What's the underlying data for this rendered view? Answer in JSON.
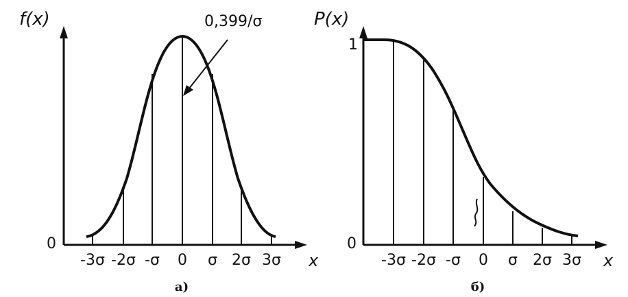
{
  "panel_a": {
    "y_axis_label": "f(x)",
    "x_axis_label": "x",
    "origin_label": "0",
    "tick_labels": [
      "-3σ",
      "-2σ",
      "-σ",
      "0",
      "σ",
      "2σ",
      "3σ"
    ],
    "peak_annotation": "0,399/σ",
    "caption": "а)"
  },
  "panel_b": {
    "y_axis_label": "P(x)",
    "x_axis_label": "x",
    "top_label": "1",
    "origin_label": "0",
    "tick_labels": [
      "-3σ",
      "-2σ",
      "-σ",
      "0",
      "σ",
      "2σ",
      "3σ"
    ],
    "caption": "б)"
  }
}
